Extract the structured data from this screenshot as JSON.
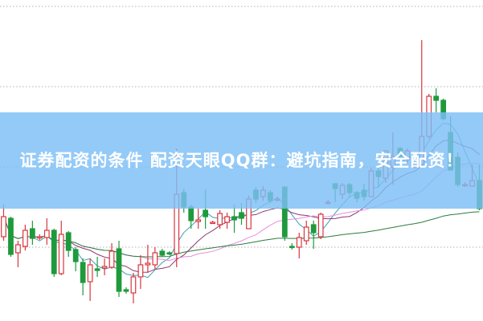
{
  "banner": {
    "title": "证券配资的条件 配资天眼QQ群：避坑指南，安全配资！"
  },
  "chart_data": {
    "type": "candlestick",
    "title": "",
    "xlabel": "",
    "ylabel": "",
    "ylim": [
      0.8,
      40.8
    ],
    "gridlines": [
      10,
      20,
      30,
      40
    ],
    "grid": "horizontal-dotted",
    "legend": "none",
    "colors": {
      "up": "#d9363e",
      "down": "#1e9a3c",
      "grid": "#b0b0b0",
      "ma5": "#3f9fb4",
      "ma10": "#8b3a6e",
      "ma20": "#e58de0",
      "ma60": "#2b7d3c"
    },
    "moving_averages": [
      5,
      10,
      20,
      60
    ],
    "candles": [
      [
        11.3,
        15.3,
        10.8,
        13.8
      ],
      [
        13.6,
        13.8,
        8.8,
        9.1
      ],
      [
        9.3,
        10.8,
        7.5,
        10.3
      ],
      [
        10.1,
        12.8,
        9.6,
        12.1
      ],
      [
        12.3,
        13.3,
        10.3,
        11.1
      ],
      [
        11.3,
        11.6,
        10.9,
        11.3
      ],
      [
        11.2,
        13.6,
        10.3,
        12.1
      ],
      [
        12.1,
        12.3,
        6.3,
        6.7
      ],
      [
        6.7,
        13.3,
        6.5,
        11.6
      ],
      [
        11.8,
        12.0,
        8.8,
        9.6
      ],
      [
        9.7,
        10.0,
        7.0,
        8.2
      ],
      [
        8.1,
        8.6,
        4.0,
        5.6
      ],
      [
        5.7,
        8.6,
        3.3,
        7.8
      ],
      [
        7.3,
        8.8,
        6.3,
        7.1
      ],
      [
        7.4,
        8.6,
        6.5,
        7.6
      ],
      [
        7.5,
        10.5,
        7.3,
        9.5
      ],
      [
        9.8,
        10.8,
        3.8,
        4.5
      ],
      [
        4.7,
        5.0,
        4.2,
        4.5
      ],
      [
        4.3,
        6.8,
        3.0,
        6.3
      ],
      [
        6.3,
        9.0,
        4.8,
        7.8
      ],
      [
        7.8,
        10.3,
        6.8,
        8.0
      ],
      [
        7.8,
        10.0,
        7.3,
        9.3
      ],
      [
        9.5,
        9.8,
        8.8,
        9.0
      ],
      [
        9.3,
        9.5,
        9.0,
        9.2
      ],
      [
        9.2,
        22.3,
        7.5,
        16.6
      ],
      [
        16.8,
        17.3,
        14.3,
        15.0
      ],
      [
        15.0,
        15.3,
        12.3,
        13.3
      ],
      [
        13.2,
        14.8,
        12.3,
        13.4
      ],
      [
        14.6,
        17.2,
        12.3,
        13.8
      ],
      [
        13.1,
        13.3,
        12.9,
        13.1
      ],
      [
        12.8,
        14.6,
        12.3,
        14.2
      ],
      [
        13.1,
        14.3,
        12.3,
        13.8
      ],
      [
        13.8,
        15.3,
        11.8,
        13.4
      ],
      [
        14.3,
        15.5,
        12.8,
        13.6
      ],
      [
        12.3,
        16.4,
        12.3,
        16.0
      ],
      [
        17.1,
        17.5,
        15.5,
        16.0
      ],
      [
        16.3,
        17.6,
        15.8,
        17.1
      ],
      [
        16.8,
        17.1,
        15.5,
        15.8
      ],
      [
        16.0,
        16.3,
        15.7,
        16.0
      ],
      [
        17.5,
        17.5,
        10.8,
        11.3
      ],
      [
        10.1,
        10.5,
        9.7,
        10.0
      ],
      [
        10.0,
        11.8,
        8.6,
        11.2
      ],
      [
        10.8,
        13.3,
        10.3,
        12.5
      ],
      [
        12.8,
        13.3,
        9.8,
        11.8
      ],
      [
        11.3,
        14.3,
        11.0,
        14.1
      ],
      [
        15.6,
        15.9,
        15.3,
        15.6
      ],
      [
        17.9,
        17.9,
        15.6,
        17.3
      ],
      [
        16.6,
        18.0,
        16.0,
        17.7
      ],
      [
        17.8,
        18.0,
        16.2,
        16.8
      ],
      [
        16.8,
        17.0,
        15.6,
        16.1
      ],
      [
        17.1,
        17.9,
        15.8,
        16.3
      ],
      [
        16.3,
        19.9,
        16.3,
        19.5
      ],
      [
        19.5,
        20.0,
        17.5,
        18.8
      ],
      [
        18.6,
        22.0,
        18.0,
        22.0
      ],
      [
        20.0,
        24.3,
        17.8,
        21.3
      ],
      [
        22.3,
        22.5,
        20.8,
        21.3
      ],
      [
        20.9,
        22.3,
        20.5,
        22.0
      ],
      [
        20.3,
        20.6,
        19.8,
        20.3
      ],
      [
        20.3,
        35.8,
        20.0,
        23.8
      ],
      [
        23.8,
        29.1,
        23.5,
        28.8
      ],
      [
        28.8,
        29.8,
        26.8,
        28.3
      ],
      [
        28.3,
        28.5,
        25.8,
        26.0
      ],
      [
        24.3,
        26.3,
        19.6,
        19.6
      ],
      [
        21.2,
        21.8,
        17.5,
        17.8
      ],
      [
        17.8,
        18.1,
        17.5,
        17.8
      ],
      [
        17.6,
        20.3,
        17.6,
        18.3
      ],
      [
        18.3,
        20.3,
        14.6,
        14.8
      ]
    ]
  }
}
